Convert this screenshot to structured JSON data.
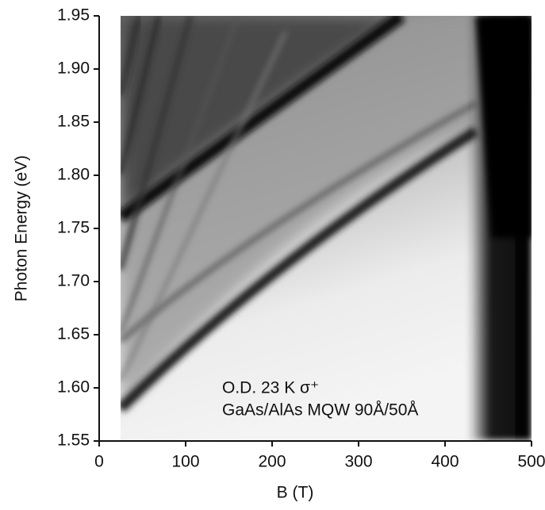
{
  "chart_data": {
    "type": "image",
    "x_label": "B (T)",
    "y_label": "Photon Energy (eV)",
    "xlim": [
      0,
      500
    ],
    "xticks": [
      0,
      100,
      200,
      300,
      400,
      500
    ],
    "ylim": [
      1.55,
      1.95
    ],
    "yticks": [
      1.55,
      {
        "value": 1.6,
        "label": "1.60"
      },
      1.65,
      {
        "value": 1.7,
        "label": "1.70"
      },
      1.75,
      {
        "value": 1.8,
        "label": "1.80"
      },
      1.85,
      {
        "value": 1.9,
        "label": "1.90"
      },
      1.95
    ],
    "annotations": [
      "O.D.  23 K  σ⁺",
      "GaAs/AlAs MQW 90Å/50Å"
    ]
  }
}
